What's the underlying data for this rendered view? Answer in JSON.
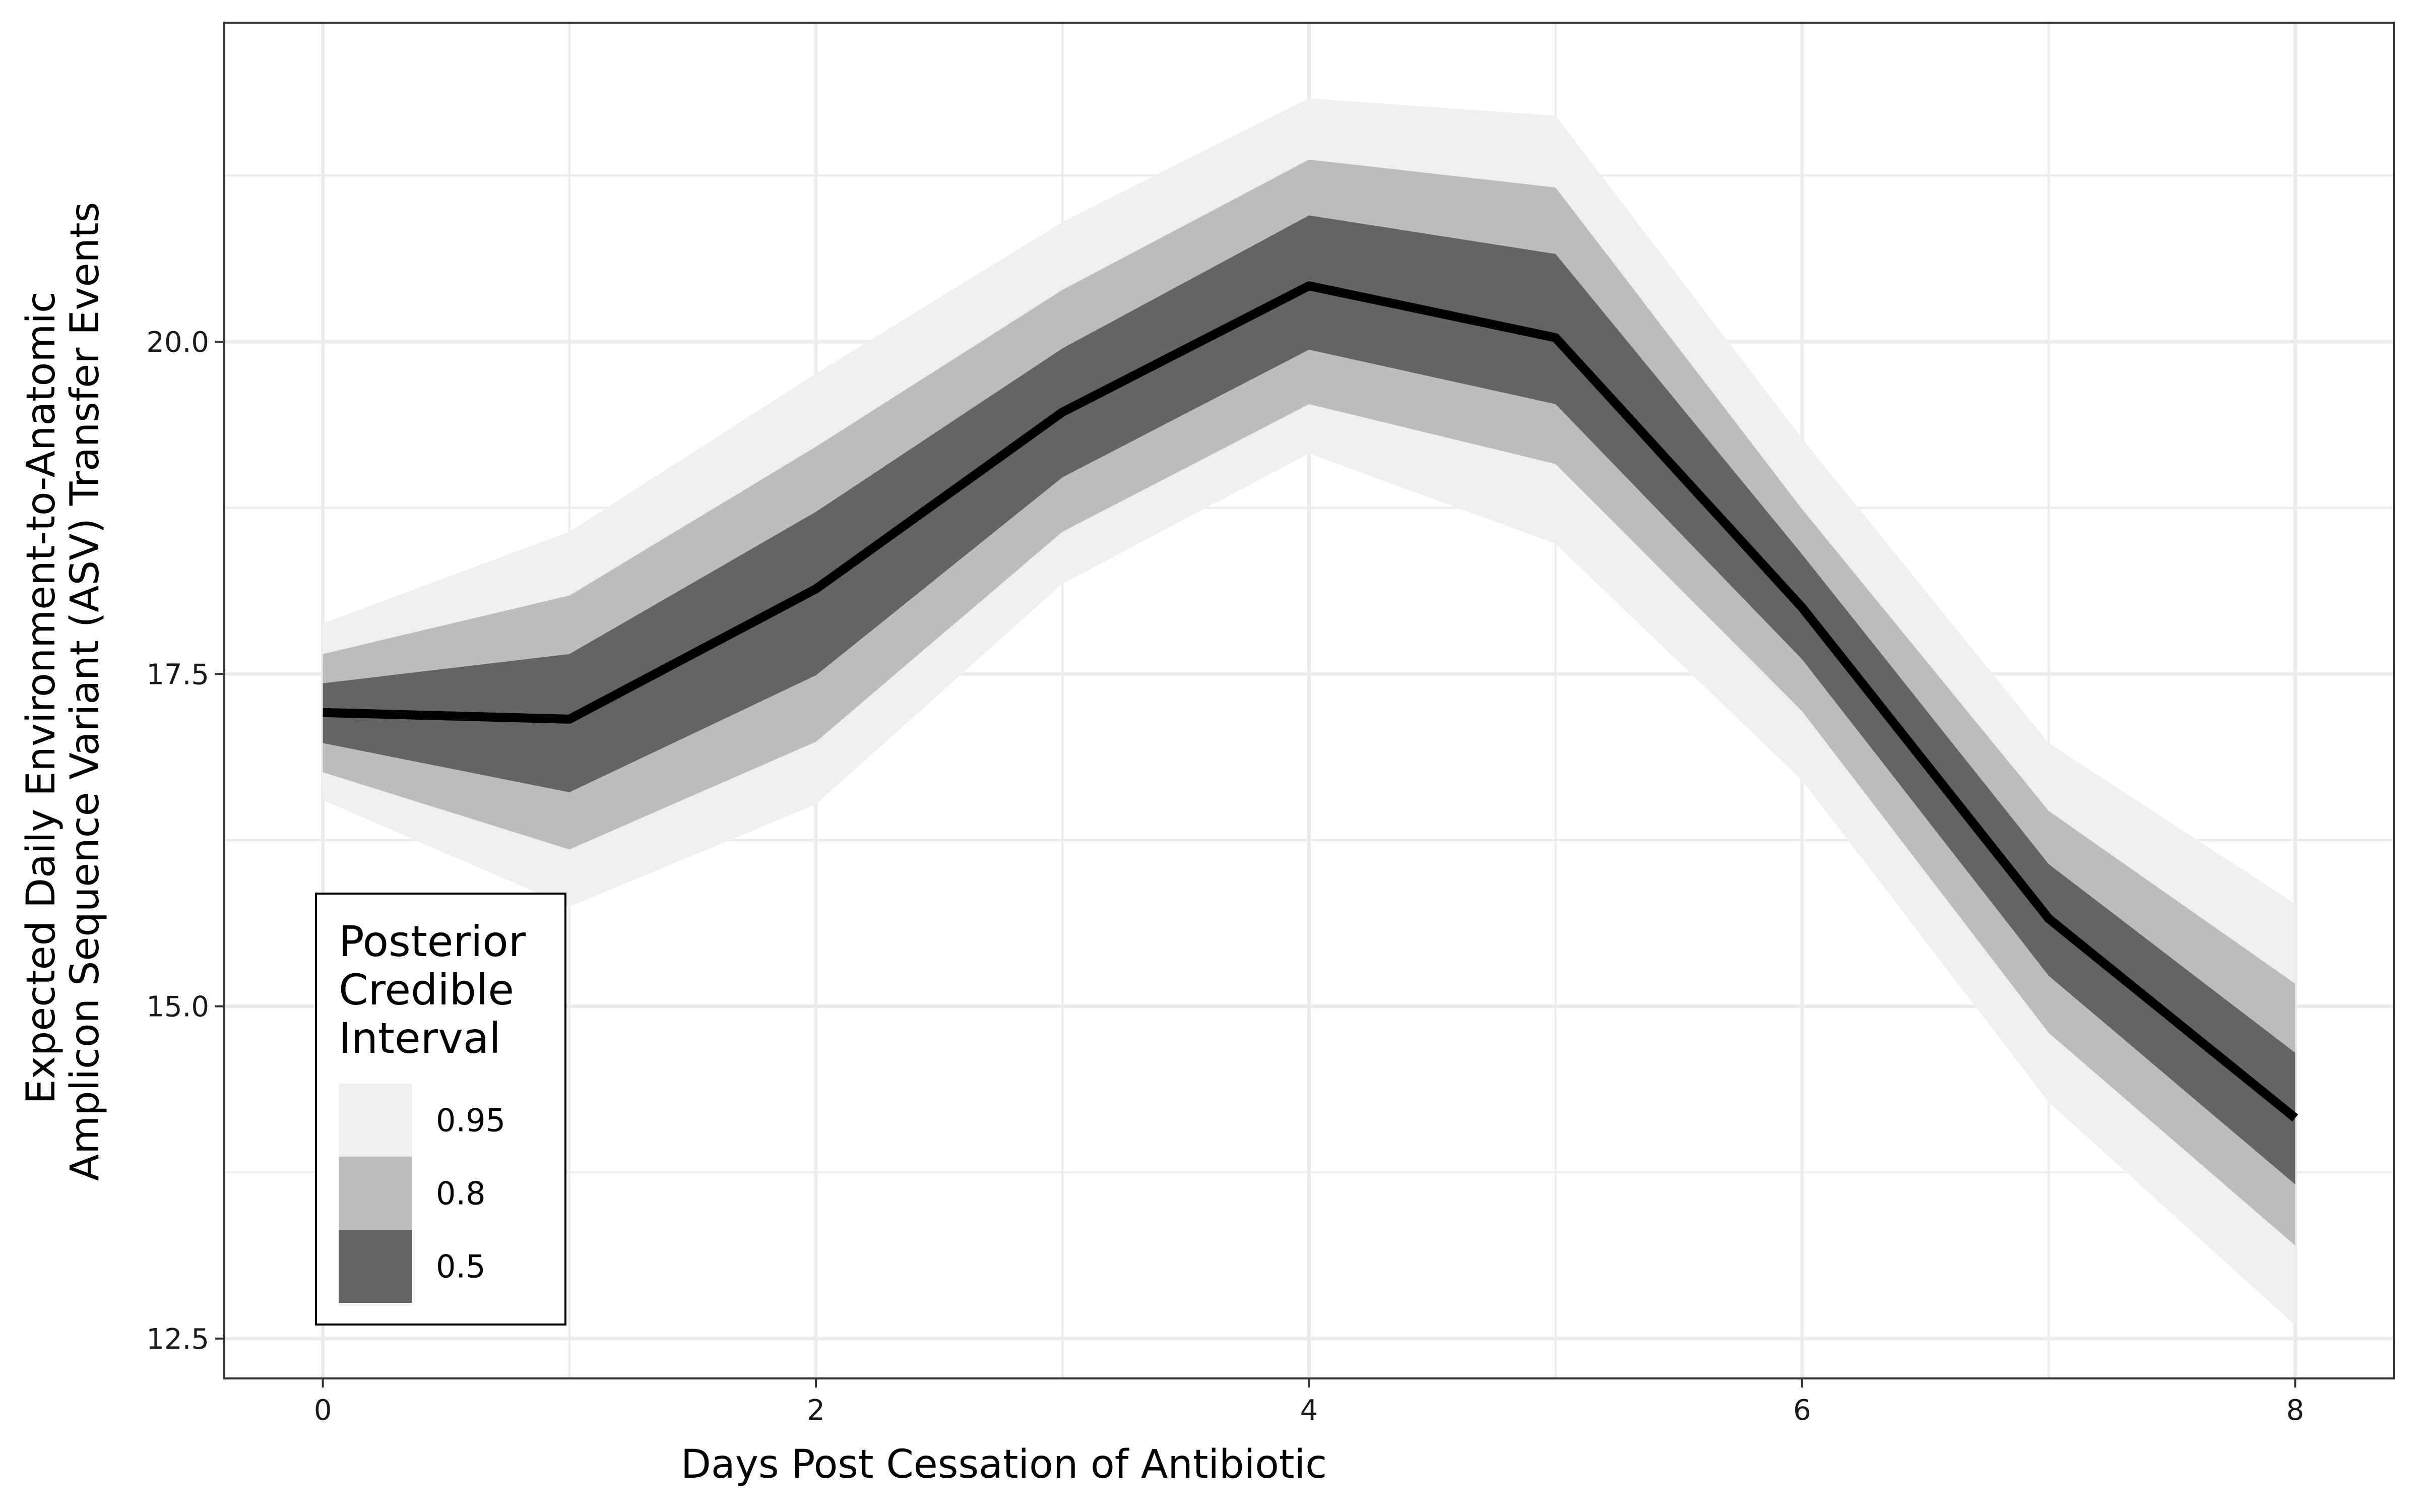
{
  "chart_data": {
    "type": "area",
    "title": "",
    "xlabel": "Days Post Cessation of Antibiotic",
    "ylabel_lines": [
      "Expected Daily Environment-to-Anatomic",
      "Amplicon Sequence Variant (ASV) Transfer Events"
    ],
    "x": [
      0,
      1,
      2,
      3,
      4,
      5,
      6,
      7,
      8
    ],
    "xlim": [
      -0.4,
      8.4
    ],
    "ylim": [
      12.2,
      22.4
    ],
    "x_ticks": [
      "0",
      "2",
      "4",
      "6",
      "8"
    ],
    "y_ticks": [
      "12.5",
      "15.0",
      "17.5",
      "20.0"
    ],
    "grid": true,
    "median": [
      17.21,
      17.16,
      18.14,
      19.47,
      20.42,
      20.03,
      18.0,
      15.66,
      14.16
    ],
    "bands": [
      {
        "name": "0.95",
        "color": "#efefef",
        "lower": [
          16.55,
          15.75,
          16.52,
          18.18,
          19.16,
          18.48,
          16.7,
          14.28,
          12.6
        ],
        "upper": [
          17.88,
          18.57,
          19.76,
          20.9,
          21.83,
          21.7,
          19.27,
          16.98,
          15.77
        ]
      },
      {
        "name": "0.8",
        "color": "#bcbcbc",
        "lower": [
          16.76,
          16.18,
          16.99,
          18.57,
          19.53,
          19.08,
          17.22,
          14.8,
          13.2
        ],
        "upper": [
          17.65,
          18.09,
          19.21,
          20.39,
          21.37,
          21.16,
          18.74,
          16.47,
          15.17
        ]
      },
      {
        "name": "0.5",
        "color": "#646464",
        "lower": [
          16.98,
          16.61,
          17.49,
          18.98,
          19.94,
          19.53,
          17.61,
          15.23,
          13.66
        ],
        "upper": [
          17.43,
          17.65,
          18.72,
          19.95,
          20.95,
          20.66,
          18.4,
          16.07,
          14.65
        ]
      }
    ],
    "median_color": "#000000",
    "legend": {
      "title_lines": [
        "Posterior",
        "Credible",
        "Interval"
      ],
      "position": "bottom-left",
      "items": [
        {
          "label": "0.95",
          "color": "#efefef"
        },
        {
          "label": "0.8",
          "color": "#bcbcbc"
        },
        {
          "label": "0.5",
          "color": "#646464"
        }
      ]
    }
  }
}
